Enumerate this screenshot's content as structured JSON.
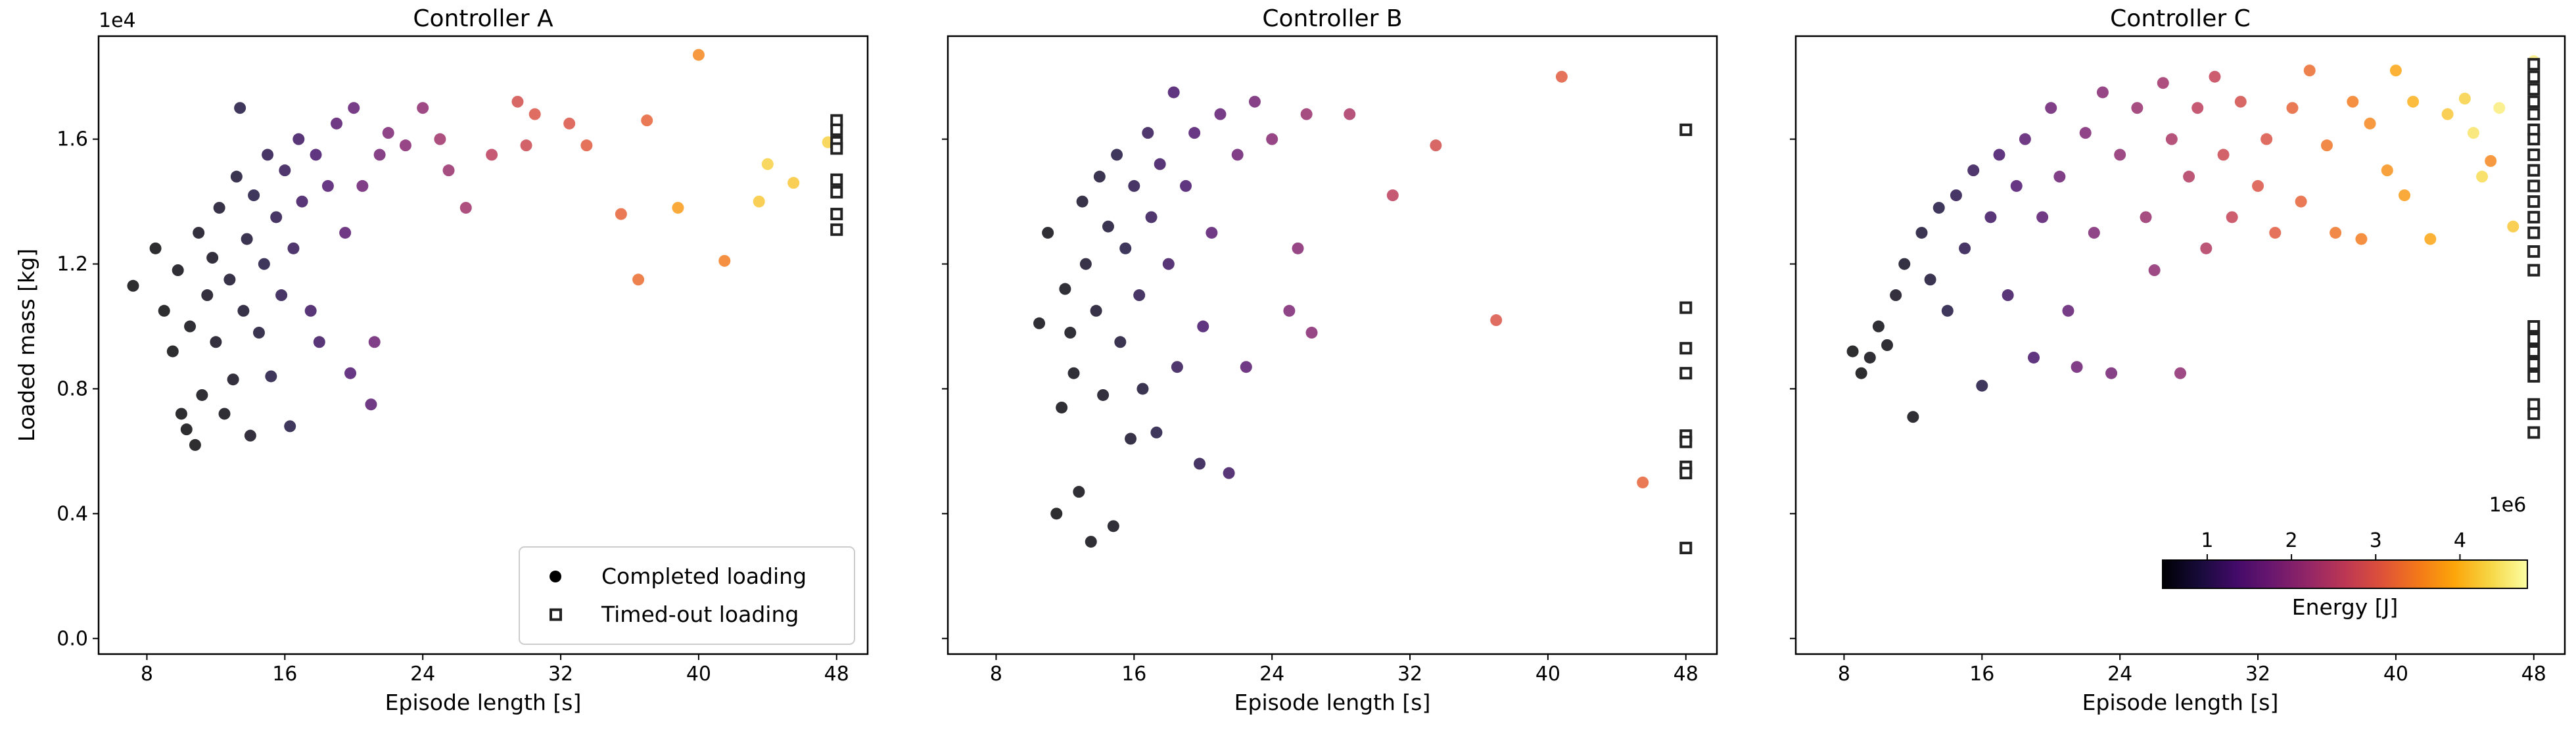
{
  "chart_data": [
    {
      "type": "scatter",
      "title": "Controller A",
      "xlabel": "Episode length [s]",
      "ylabel": "Loaded mass [kg]",
      "y_offset": "1e4",
      "xlim": [
        5.2,
        49.8
      ],
      "xticks": [
        8,
        16,
        24,
        32,
        40,
        48
      ],
      "ylim": [
        -0.05,
        1.93
      ],
      "yticks": [
        {
          "value": 0,
          "label": "0.0"
        },
        0.4,
        0.8,
        1.2,
        1.6
      ],
      "legend": {
        "loc": "lower right",
        "entries": [
          "Completed loading",
          "Timed-out loading"
        ]
      },
      "series": [
        {
          "marker": "circle",
          "x": [
            7.2,
            8.5,
            9,
            9.5,
            9.8,
            10,
            10.3,
            10.5,
            10.8,
            11,
            11.2,
            11.5,
            11.8,
            12,
            12.2,
            12.5,
            12.8,
            13,
            13.2,
            13.4,
            13.6,
            13.8,
            14,
            14.2,
            14.5,
            14.8,
            15,
            15.2,
            15.5,
            15.8,
            16,
            16.3,
            16.5,
            16.8,
            17,
            17.5,
            17.8,
            18,
            18.5,
            19,
            19.5,
            19.8,
            20,
            20.5,
            21,
            21.2,
            21.5,
            22,
            23,
            24,
            25,
            25.5,
            26.5,
            28,
            29.5,
            30,
            30.5,
            32.5,
            33.5,
            35.5,
            36.5,
            37,
            38.8,
            40,
            41.5,
            43.5,
            44,
            45.5,
            47.5
          ],
          "y": [
            1.13,
            1.25,
            1.05,
            0.92,
            1.18,
            0.72,
            0.67,
            1.0,
            0.62,
            1.3,
            0.78,
            1.1,
            1.22,
            0.95,
            1.38,
            0.72,
            1.15,
            0.83,
            1.48,
            1.7,
            1.05,
            1.28,
            0.65,
            1.42,
            0.98,
            1.2,
            1.55,
            0.84,
            1.35,
            1.1,
            1.5,
            0.68,
            1.25,
            1.6,
            1.4,
            1.05,
            1.55,
            0.95,
            1.45,
            1.65,
            1.3,
            0.85,
            1.7,
            1.45,
            0.75,
            0.95,
            1.55,
            1.62,
            1.58,
            1.7,
            1.6,
            1.5,
            1.38,
            1.55,
            1.72,
            1.58,
            1.68,
            1.65,
            1.58,
            1.36,
            1.15,
            1.66,
            1.38,
            1.87,
            1.21,
            1.4,
            1.52,
            1.46,
            1.59
          ],
          "energy": [
            0.4,
            0.4,
            0.45,
            0.45,
            0.5,
            0.45,
            0.45,
            0.5,
            0.45,
            0.6,
            0.5,
            0.6,
            0.6,
            0.6,
            0.7,
            0.5,
            0.7,
            0.6,
            0.8,
            0.9,
            0.7,
            0.8,
            0.6,
            0.9,
            0.8,
            0.9,
            1.0,
            0.9,
            1.0,
            1.0,
            1.1,
            0.9,
            1.1,
            1.2,
            1.2,
            1.2,
            1.3,
            1.2,
            1.4,
            1.5,
            1.5,
            1.4,
            1.6,
            1.7,
            1.5,
            1.7,
            1.8,
            1.9,
            2.0,
            2.1,
            2.3,
            2.2,
            2.3,
            2.6,
            2.9,
            2.8,
            3.0,
            3.0,
            3.1,
            3.2,
            3.3,
            3.2,
            3.8,
            3.6,
            3.5,
            4.2,
            4.3,
            4.2,
            4.3
          ]
        },
        {
          "marker": "square",
          "x": [
            48,
            48,
            48,
            48,
            48,
            48,
            48,
            48
          ],
          "y": [
            1.66,
            1.63,
            1.59,
            1.57,
            1.47,
            1.43,
            1.36,
            1.31
          ]
        }
      ]
    },
    {
      "type": "scatter",
      "title": "Controller B",
      "xlabel": "Episode length [s]",
      "xlim": [
        5.2,
        49.8
      ],
      "xticks": [
        8,
        16,
        24,
        32,
        40,
        48
      ],
      "ylim": [
        -0.05,
        1.93
      ],
      "yticks": [
        0,
        0.4,
        0.8,
        1.2,
        1.6
      ],
      "series": [
        {
          "marker": "circle",
          "x": [
            10.5,
            11,
            11.5,
            11.8,
            12,
            12.3,
            12.5,
            12.8,
            13,
            13.2,
            13.5,
            13.8,
            14,
            14.2,
            14.5,
            14.8,
            15,
            15.2,
            15.5,
            15.8,
            16,
            16.3,
            16.5,
            16.8,
            17,
            17.3,
            17.5,
            18,
            18.3,
            18.5,
            19,
            19.5,
            19.8,
            20,
            20.5,
            21,
            21.5,
            22,
            22.5,
            23,
            24,
            25,
            25.5,
            26,
            26.3,
            28.5,
            31,
            33.5,
            37,
            40.8,
            45.5
          ],
          "y": [
            1.01,
            1.3,
            0.4,
            0.74,
            1.12,
            0.98,
            0.85,
            0.47,
            1.4,
            1.2,
            0.31,
            1.05,
            1.48,
            0.78,
            1.32,
            0.36,
            1.55,
            0.95,
            1.25,
            0.64,
            1.45,
            1.1,
            0.8,
            1.62,
            1.35,
            0.66,
            1.52,
            1.2,
            1.75,
            0.87,
            1.45,
            1.62,
            0.56,
            1.0,
            1.3,
            1.68,
            0.53,
            1.55,
            0.87,
            1.72,
            1.6,
            1.05,
            1.25,
            1.68,
            0.98,
            1.68,
            1.42,
            1.58,
            1.02,
            1.8,
            0.5
          ],
          "energy": [
            0.5,
            0.5,
            0.45,
            0.5,
            0.55,
            0.55,
            0.55,
            0.5,
            0.7,
            0.7,
            0.5,
            0.7,
            0.8,
            0.6,
            0.8,
            0.55,
            0.9,
            0.8,
            0.9,
            0.7,
            1.0,
            1.0,
            0.8,
            1.1,
            1.1,
            0.9,
            1.2,
            1.2,
            1.3,
            1.1,
            1.3,
            1.4,
            1.0,
            1.3,
            1.5,
            1.6,
            1.2,
            1.7,
            1.5,
            1.8,
            2.0,
            1.9,
            2.0,
            2.2,
            2.0,
            2.4,
            2.6,
            2.9,
            3.0,
            3.1,
            3.2
          ]
        },
        {
          "marker": "square",
          "x": [
            48,
            48,
            48,
            48,
            48,
            48,
            48,
            48,
            48
          ],
          "y": [
            1.63,
            1.06,
            0.93,
            0.85,
            0.65,
            0.63,
            0.55,
            0.53,
            0.29
          ]
        }
      ]
    },
    {
      "type": "scatter",
      "title": "Controller C",
      "xlabel": "Episode length [s]",
      "xlim": [
        5.2,
        49.8
      ],
      "xticks": [
        8,
        16,
        24,
        32,
        40,
        48
      ],
      "ylim": [
        -0.05,
        1.93
      ],
      "yticks": [
        0,
        0.4,
        0.8,
        1.2,
        1.6
      ],
      "colorbar": {
        "label": "Energy [J]",
        "offset": "1e6",
        "cmap": "inferno",
        "lim": [
          0.47,
          4.8
        ],
        "ticks": [
          1,
          2,
          3,
          4
        ]
      },
      "series": [
        {
          "marker": "circle",
          "x": [
            8.5,
            9,
            9.5,
            10,
            10.5,
            11,
            11.5,
            12,
            12.5,
            13,
            13.5,
            14,
            14.5,
            15,
            15.5,
            16,
            16.5,
            17,
            17.5,
            18,
            18.5,
            19,
            19.5,
            20,
            20.5,
            21,
            21.5,
            22,
            22.5,
            23,
            23.5,
            24,
            25,
            25.5,
            26,
            26.5,
            27,
            27.5,
            28,
            28.5,
            29,
            29.5,
            30,
            30.5,
            31,
            32,
            32.5,
            33,
            34,
            34.5,
            35,
            36,
            36.5,
            37.5,
            38,
            38.5,
            39.5,
            40,
            40.5,
            41,
            42,
            43,
            44,
            44.5,
            45,
            45.5,
            46,
            46.8,
            48
          ],
          "y": [
            0.92,
            0.85,
            0.9,
            1.0,
            0.94,
            1.1,
            1.2,
            0.71,
            1.3,
            1.15,
            1.38,
            1.05,
            1.42,
            1.25,
            1.5,
            0.81,
            1.35,
            1.55,
            1.1,
            1.45,
            1.6,
            0.9,
            1.35,
            1.7,
            1.48,
            1.05,
            0.87,
            1.62,
            1.3,
            1.75,
            0.85,
            1.55,
            1.7,
            1.35,
            1.18,
            1.78,
            1.6,
            0.85,
            1.48,
            1.7,
            1.25,
            1.8,
            1.55,
            1.35,
            1.72,
            1.45,
            1.6,
            1.3,
            1.7,
            1.4,
            1.82,
            1.58,
            1.3,
            1.72,
            1.28,
            1.65,
            1.5,
            1.82,
            1.42,
            1.72,
            1.28,
            1.68,
            1.73,
            1.62,
            1.48,
            1.53,
            1.7,
            1.32,
            1.85
          ],
          "energy": [
            0.45,
            0.45,
            0.5,
            0.5,
            0.5,
            0.6,
            0.65,
            0.5,
            0.8,
            0.8,
            0.9,
            0.9,
            1.0,
            1.0,
            1.1,
            0.9,
            1.2,
            1.3,
            1.2,
            1.4,
            1.5,
            1.3,
            1.5,
            1.7,
            1.7,
            1.6,
            1.7,
            1.9,
            1.9,
            2.0,
            1.8,
            2.1,
            2.2,
            2.2,
            2.1,
            2.3,
            2.4,
            2.1,
            2.5,
            2.6,
            2.5,
            2.7,
            2.8,
            2.7,
            2.9,
            3.0,
            3.0,
            3.1,
            3.2,
            3.2,
            3.3,
            3.4,
            3.4,
            3.5,
            3.5,
            3.6,
            3.7,
            3.9,
            3.8,
            4.0,
            3.9,
            4.2,
            4.3,
            4.5,
            4.4,
            3.6,
            4.6,
            4.2,
            4.6
          ]
        },
        {
          "marker": "square",
          "x": [
            48,
            48,
            48,
            48,
            48,
            48,
            48,
            48,
            48,
            48,
            48,
            48,
            48,
            48,
            48,
            48,
            48,
            48,
            48,
            48,
            48,
            48,
            48
          ],
          "y": [
            1.84,
            1.8,
            1.76,
            1.72,
            1.68,
            1.63,
            1.6,
            1.55,
            1.5,
            1.45,
            1.4,
            1.35,
            1.3,
            1.24,
            1.18,
            1.0,
            0.96,
            0.92,
            0.88,
            0.84,
            0.75,
            0.72,
            0.66
          ]
        }
      ]
    }
  ]
}
